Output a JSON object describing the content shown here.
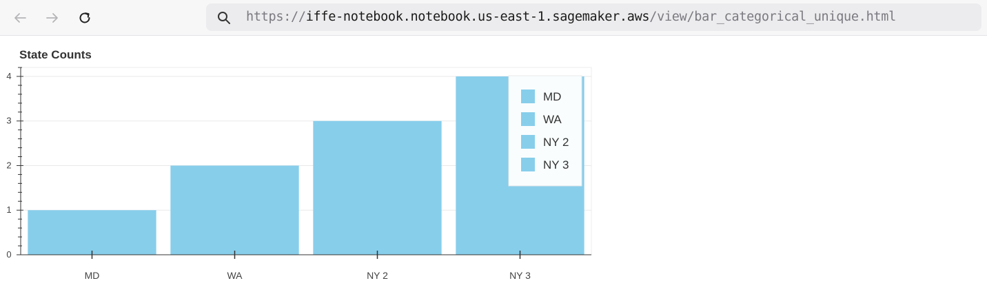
{
  "browser": {
    "url_scheme": "https://",
    "url_host": "iffe-notebook.notebook.us-east-1.sagemaker.aws",
    "url_path": "/view/bar_categorical_unique.html"
  },
  "colors": {
    "bar": "#87ceeb",
    "axis": "#333333",
    "grid": "#e9e9e9"
  },
  "chart_data": {
    "type": "bar",
    "title": "State Counts",
    "categories": [
      "MD",
      "WA",
      "NY 2",
      "NY 3"
    ],
    "values": [
      1,
      2,
      3,
      4
    ],
    "ylim": [
      0,
      4.2
    ],
    "yticks": [
      0,
      1,
      2,
      3,
      4
    ],
    "grid": true,
    "legend": {
      "placement": "top-right",
      "entries": [
        "MD",
        "WA",
        "NY 2",
        "NY 3"
      ]
    }
  }
}
